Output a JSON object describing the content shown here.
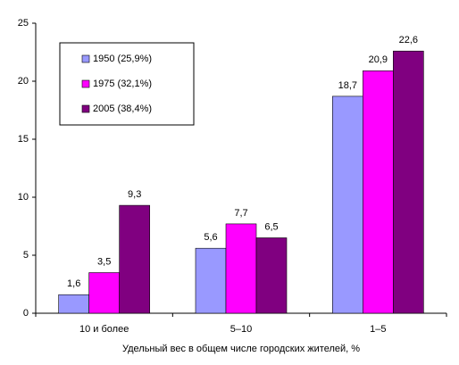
{
  "chart_data": {
    "type": "bar",
    "x_label": "Удельный вес в общем числе городских жителей, %",
    "categories": [
      "10 и более",
      "5–10",
      "1–5"
    ],
    "series": [
      {
        "name": "1950 (25,9%)",
        "color": "#9999ff",
        "values": [
          1.6,
          5.6,
          18.7
        ],
        "value_labels": [
          "1,6",
          "5,6",
          "18,7"
        ]
      },
      {
        "name": "1975 (32,1%)",
        "color": "#ff00ff",
        "values": [
          3.5,
          7.7,
          20.9
        ],
        "value_labels": [
          "3,5",
          "7,7",
          "20,9"
        ]
      },
      {
        "name": "2005 (38,4%)",
        "color": "#800080",
        "values": [
          9.3,
          6.5,
          22.6
        ],
        "value_labels": [
          "9,3",
          "6,5",
          "22,6"
        ]
      }
    ],
    "ylim": [
      0,
      25
    ],
    "yticks": [
      0,
      5,
      10,
      15,
      20,
      25
    ]
  }
}
